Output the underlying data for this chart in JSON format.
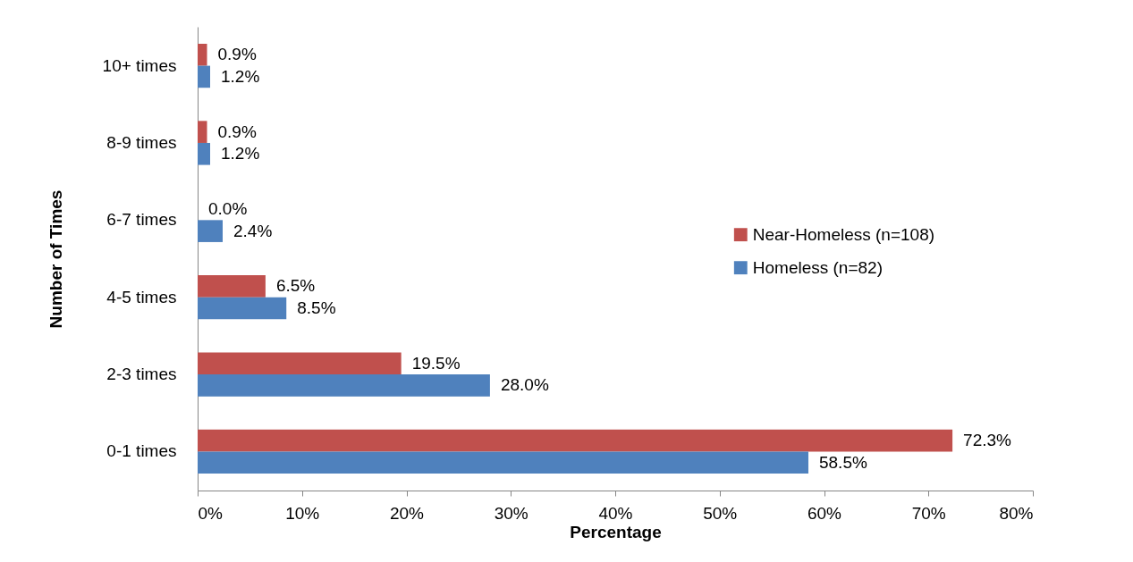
{
  "chart_data": {
    "type": "bar",
    "orientation": "horizontal",
    "xlabel": "Percentage",
    "ylabel": "Number of Times",
    "categories": [
      "10+ times",
      "8-9 times",
      "6-7 times",
      "4-5 times",
      "2-3 times",
      "0-1 times"
    ],
    "series": [
      {
        "name": "Near-Homeless (n=108)",
        "color": "#c0504d",
        "values": [
          0.9,
          0.9,
          0.0,
          6.5,
          19.5,
          72.3
        ],
        "value_labels": [
          "0.9%",
          "0.9%",
          "0.0%",
          "6.5%",
          "19.5%",
          "72.3%"
        ]
      },
      {
        "name": "Homeless (n=82)",
        "color": "#4f81bd",
        "values": [
          1.2,
          1.2,
          2.4,
          8.5,
          28.0,
          58.5
        ],
        "value_labels": [
          "1.2%",
          "1.2%",
          "2.4%",
          "8.5%",
          "28.0%",
          "58.5%"
        ]
      }
    ],
    "xlim": [
      0,
      80
    ],
    "xticks": [
      {
        "value": 0,
        "label": "0%"
      },
      {
        "value": 10,
        "label": "10%"
      },
      {
        "value": 20,
        "label": "20%"
      },
      {
        "value": 30,
        "label": "30%"
      },
      {
        "value": 40,
        "label": "40%"
      },
      {
        "value": 50,
        "label": "50%"
      },
      {
        "value": 60,
        "label": "60%"
      },
      {
        "value": 70,
        "label": "70%"
      },
      {
        "value": 80,
        "label": "80%"
      }
    ],
    "grid": false,
    "legend": "right"
  }
}
